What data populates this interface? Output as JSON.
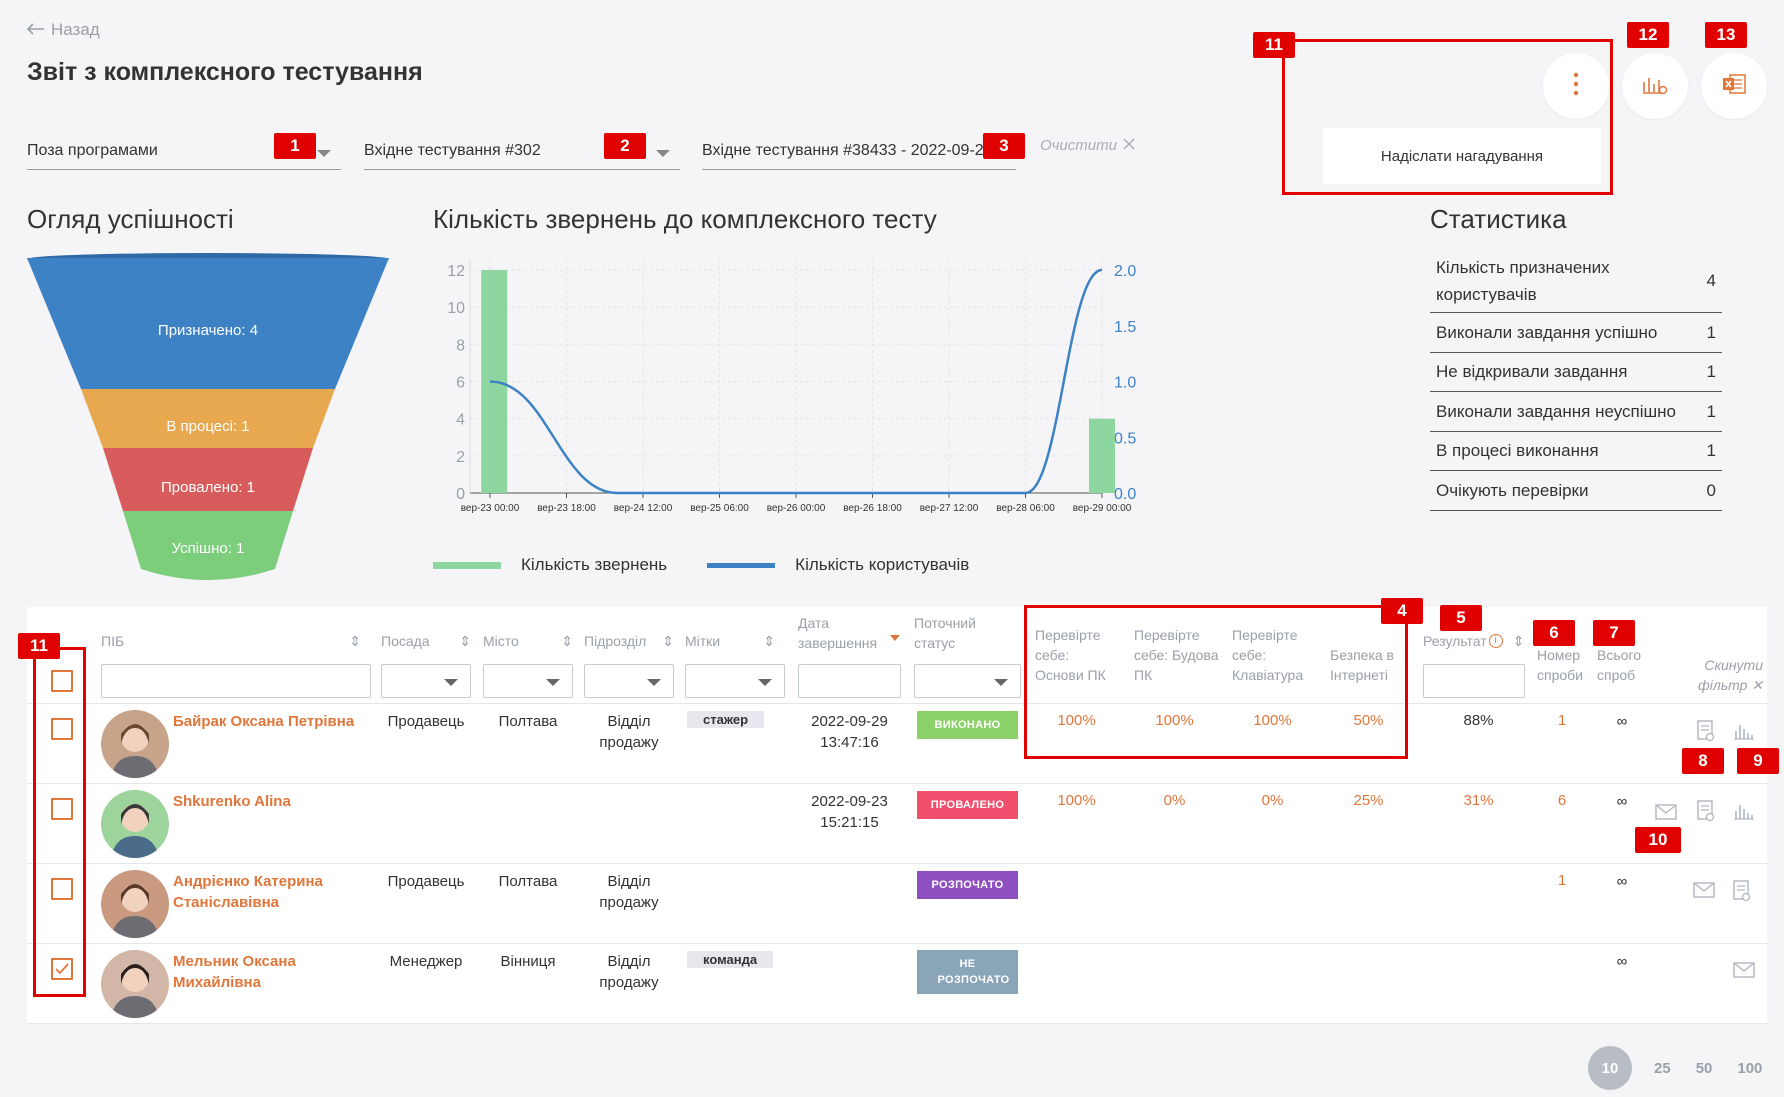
{
  "header": {
    "back_label": "Назад",
    "title": "Звіт з комплексного тестування"
  },
  "filters": {
    "program": "Поза програмами",
    "test": "Вхідне тестування #302",
    "attempt": "Вхідне тестування #38433 - 2022-09-2...",
    "clear_label": "Очистити"
  },
  "actions": {
    "dropdown_item": "Надіслати нагадування"
  },
  "annotations": {
    "b1": "1",
    "b2": "2",
    "b3": "3",
    "b4": "4",
    "b5": "5",
    "b6": "6",
    "b7": "7",
    "b8": "8",
    "b9": "9",
    "b10": "10",
    "b11a": "11",
    "b11b": "11",
    "b12": "12",
    "b13": "13"
  },
  "funnel": {
    "title": "Огляд успішності",
    "levels": [
      {
        "label": "Призначено: 4",
        "color": "#3d82c4"
      },
      {
        "label": "В процесі: 1",
        "color": "#e8a84f"
      },
      {
        "label": "Провалено: 1",
        "color": "#d95c5c"
      },
      {
        "label": "Успішно: 1",
        "color": "#7ccd7c"
      }
    ]
  },
  "chart_section": {
    "title": "Кількість звернень до комплексного тесту"
  },
  "chart_data": {
    "type": "bar",
    "x_ticks": [
      "вер-23 00:00",
      "вер-23 18:00",
      "вер-24 12:00",
      "вер-25 06:00",
      "вер-26 00:00",
      "вер-26 18:00",
      "вер-27 12:00",
      "вер-28 06:00",
      "вер-29 00:00"
    ],
    "y_left_ticks": [
      "0",
      "2",
      "4",
      "6",
      "8",
      "10",
      "12"
    ],
    "y_left_range": [
      0,
      12
    ],
    "y_right_ticks": [
      "0.0",
      "0.5",
      "1.0",
      "1.5",
      "2.0"
    ],
    "y_right_range": [
      0,
      2
    ],
    "grid": true,
    "legend_position": "bottom",
    "series": [
      {
        "name": "Кількість звернень",
        "type": "bar",
        "axis": "left",
        "color": "#8ed6a0",
        "points": [
          {
            "x": "2022-09-23 01:00",
            "y": 12
          },
          {
            "x": "2022-09-29 00:00",
            "y": 4
          }
        ]
      },
      {
        "name": "Кількість користувачів",
        "type": "line",
        "axis": "right",
        "color": "#3d82c4",
        "points": [
          {
            "x": "2022-09-23 00:00",
            "y": 1
          },
          {
            "x": "2022-09-24 06:00",
            "y": 0
          },
          {
            "x": "2022-09-28 06:00",
            "y": 0
          },
          {
            "x": "2022-09-29 00:00",
            "y": 2
          }
        ]
      }
    ]
  },
  "stats": {
    "title": "Статистика",
    "rows": [
      {
        "label": "Кількість призначених користувачів",
        "value": "4"
      },
      {
        "label": "Виконали завдання успішно",
        "value": "1"
      },
      {
        "label": "Не відкривали завдання",
        "value": "1"
      },
      {
        "label": "Виконали завдання неуспішно",
        "value": "1"
      },
      {
        "label": "В процесі виконання",
        "value": "1"
      },
      {
        "label": "Очікують перевірки",
        "value": "0"
      }
    ]
  },
  "table": {
    "headers": {
      "name": "ПІБ",
      "position": "Посада",
      "city": "Місто",
      "dept": "Підрозділ",
      "tags": "Мітки",
      "date": "Дата завершення",
      "status": "Поточний статус",
      "t1": "Перевірте себе: Основи ПК",
      "t2": "Перевірте себе: Будова ПК",
      "t3": "Перевірте себе: Клавіатура",
      "t4": "Безпека в Інтернеті",
      "result": "Результат",
      "attempt_no": "Номер спроби",
      "attempts_total": "Всього спроб",
      "reset": "Скинути фільтр"
    },
    "rows": [
      {
        "name": "Байрак Оксана Петрівна",
        "position": "Продавець",
        "city": "Полтава",
        "dept": "Відділ продажу",
        "tag": "стажер",
        "date": "2022-09-29",
        "time": "13:47:16",
        "status": "ВИКОНАНО",
        "status_color": "#8cd06a",
        "t1": "100%",
        "t2": "100%",
        "t3": "100%",
        "t4": "50%",
        "result": "88%",
        "attempt": "1",
        "total": "∞",
        "checked": false
      },
      {
        "name": "Shkurenko Alina",
        "position": "",
        "city": "",
        "dept": "",
        "tag": "",
        "date": "2022-09-23",
        "time": "15:21:15",
        "status": "ПРОВАЛЕНО",
        "status_color": "#f0506e",
        "t1": "100%",
        "t2": "0%",
        "t3": "0%",
        "t4": "25%",
        "result": "31%",
        "attempt": "6",
        "total": "∞",
        "checked": false
      },
      {
        "name": "Андрієнко Катерина Станіславівна",
        "position": "Продавець",
        "city": "Полтава",
        "dept": "Відділ продажу",
        "tag": "",
        "date": "",
        "time": "",
        "status": "РОЗПОЧАТО",
        "status_color": "#8e4fc0",
        "t1": "",
        "t2": "",
        "t3": "",
        "t4": "",
        "result": "",
        "attempt": "1",
        "total": "∞",
        "checked": false
      },
      {
        "name": "Мельник Оксана Михайлівна",
        "position": "Менеджер",
        "city": "Вінниця",
        "dept": "Відділ продажу",
        "tag": "команда",
        "date": "",
        "time": "",
        "status": "НЕ РОЗПОЧАТО",
        "status_color": "#8aa4b8",
        "t1": "",
        "t2": "",
        "t3": "",
        "t4": "",
        "result": "",
        "attempt": "",
        "total": "∞",
        "checked": true
      }
    ]
  },
  "pagination": {
    "sizes": [
      "10",
      "25",
      "50",
      "100"
    ],
    "active": "10"
  }
}
